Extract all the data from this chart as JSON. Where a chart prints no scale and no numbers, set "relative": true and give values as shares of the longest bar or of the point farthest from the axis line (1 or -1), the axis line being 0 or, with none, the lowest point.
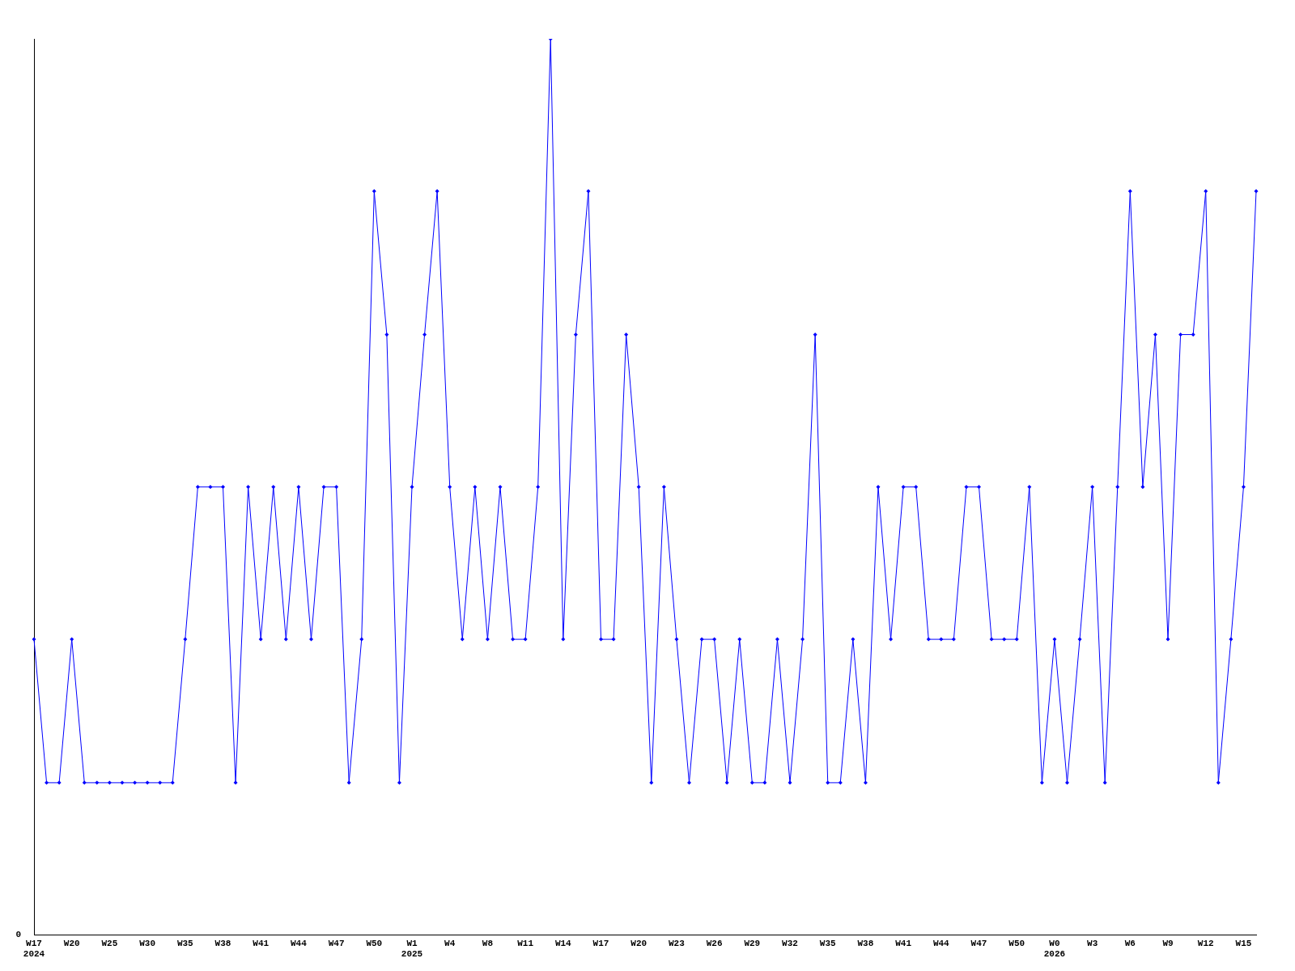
{
  "chart_data": {
    "type": "line",
    "relative": true,
    "color": "#0000ff",
    "marker": "diamond",
    "grid": false,
    "legend": false,
    "categories": [
      "W17\n2024",
      null,
      null,
      "W20",
      null,
      null,
      "W25",
      null,
      null,
      "W30",
      null,
      null,
      "W35",
      null,
      null,
      "W38",
      null,
      null,
      "W41",
      null,
      null,
      "W44",
      null,
      null,
      "W47",
      null,
      null,
      "W50",
      null,
      null,
      "W1\n2025",
      null,
      null,
      "W4",
      null,
      null,
      "W8",
      null,
      null,
      "W11",
      null,
      null,
      "W14",
      null,
      null,
      "W17",
      null,
      null,
      "W20",
      null,
      null,
      "W23",
      null,
      null,
      "W26",
      null,
      null,
      "W29",
      null,
      null,
      "W32",
      null,
      null,
      "W35",
      null,
      null,
      "W38",
      null,
      null,
      "W41",
      null,
      null,
      "W44",
      null,
      null,
      "W47",
      null,
      null,
      "W50",
      null,
      null,
      "W0\n2026",
      null,
      null,
      "W3",
      null,
      null,
      "W6",
      null,
      null,
      "W9",
      null,
      null,
      "W12",
      null,
      null,
      "W15",
      null
    ],
    "values": [
      0.33,
      0.17,
      0.17,
      0.33,
      0.17,
      0.17,
      0.17,
      0.17,
      0.17,
      0.17,
      0.17,
      0.17,
      0.33,
      0.5,
      0.5,
      0.5,
      0.17,
      0.5,
      0.33,
      0.5,
      0.33,
      0.5,
      0.33,
      0.5,
      0.5,
      0.17,
      0.33,
      0.83,
      0.67,
      0.17,
      0.5,
      0.67,
      0.83,
      0.5,
      0.33,
      0.5,
      0.33,
      0.5,
      0.33,
      0.33,
      0.5,
      1,
      0.33,
      0.67,
      0.83,
      0.33,
      0.33,
      0.67,
      0.5,
      0.17,
      0.5,
      0.33,
      0.17,
      0.33,
      0.33,
      0.17,
      0.33,
      0.17,
      0.17,
      0.33,
      0.17,
      0.33,
      0.67,
      0.17,
      0.17,
      0.33,
      0.17,
      0.5,
      0.33,
      0.5,
      0.5,
      0.33,
      0.33,
      0.33,
      0.5,
      0.5,
      0.33,
      0.33,
      0.33,
      0.5,
      0.17,
      0.33,
      0.17,
      0.33,
      0.5,
      0.17,
      0.5,
      0.83,
      0.5,
      0.67,
      0.33,
      0.67,
      0.67,
      0.83,
      0.17,
      0.33,
      0.5,
      0.83
    ],
    "annotations": [
      "0"
    ]
  }
}
